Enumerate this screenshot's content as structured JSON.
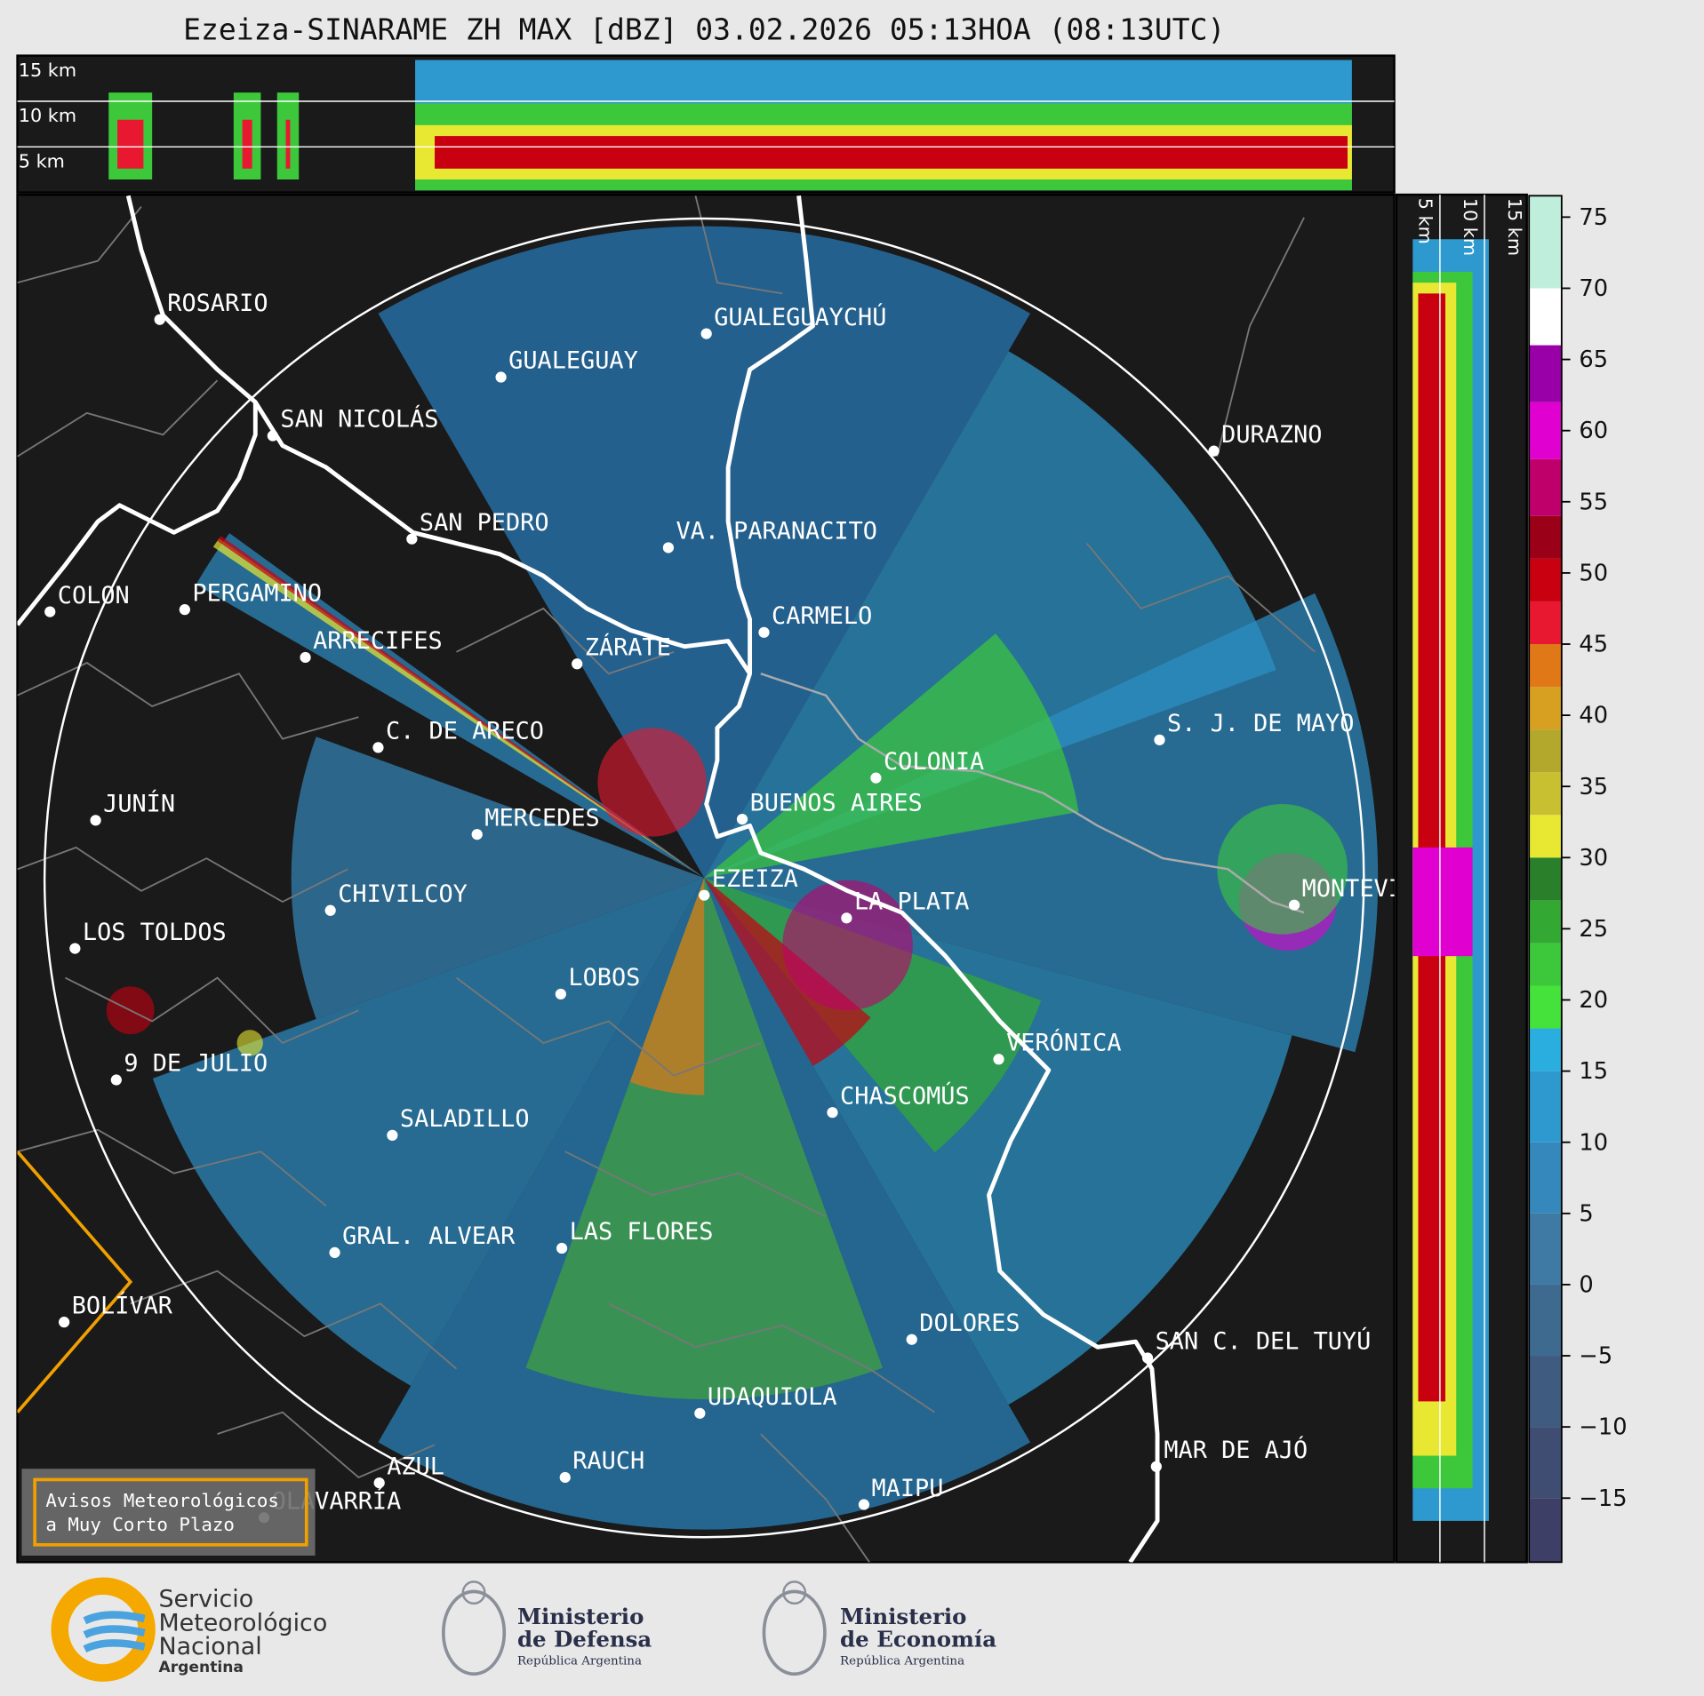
{
  "title": "Ezeiza-SINARAME ZH MAX [dBZ] 03.02.2026 05:13HOA (08:13UTC)",
  "cross_sections": {
    "top_labels": [
      "15 km",
      "10 km",
      "5 km"
    ],
    "side_labels": [
      "5 km",
      "10 km",
      "15 km"
    ]
  },
  "cities": [
    "ROSARIO",
    "GUALEGUAYCHÚ",
    "GUALEGUAY",
    "SAN NICOLÁS",
    "DURAZNO",
    "SAN PEDRO",
    "VA. PARANACITO",
    "COLON",
    "PERGAMINO",
    "CARMELO",
    "ARRECIFES",
    "ZÁRATE",
    "S. J. DE MAYO",
    "C. DE ARECO",
    "COLONIA",
    "BUENOS AIRES",
    "JUNÍN",
    "MERCEDES",
    "EZEIZA",
    "CHIVILCOY",
    "MONTEVIDEO",
    "LA PLATA",
    "LOS TOLDOS",
    "LOBOS",
    "VERÓNICA",
    "9 DE JULIO",
    "CHASCOMÚS",
    "SALADILLO",
    "GRAL. ALVEAR",
    "LAS FLORES",
    "BOLÍVAR",
    "DOLORES",
    "SAN C. DEL TUYÚ",
    "UDAQUIOLA",
    "MAR DE AJÓ",
    "AZUL",
    "RAUCH",
    "OLAVARRÍA",
    "MAIPU"
  ],
  "colorbar": {
    "range": [
      -19.5,
      76.5
    ],
    "ticks": [
      75,
      70,
      65,
      60,
      55,
      50,
      45,
      40,
      35,
      30,
      25,
      20,
      15,
      10,
      5,
      0,
      {
        "value": -5,
        "label": "−5"
      },
      {
        "value": -10,
        "label": "−10"
      },
      {
        "value": -15,
        "label": "−15"
      }
    ],
    "bins": [
      -19.5,
      -15,
      -10,
      -5,
      0,
      5,
      10,
      15,
      18,
      21,
      24,
      27,
      30,
      33,
      36,
      39,
      42,
      45,
      48,
      51,
      54,
      58,
      62,
      66,
      70,
      76.5
    ],
    "colors": [
      "#3d3f66",
      "#3f4d72",
      "#3f5b80",
      "#3f6a90",
      "#3f7aa4",
      "#3488bb",
      "#2e99cf",
      "#2aaee0",
      "#44e23a",
      "#3cc83a",
      "#33a833",
      "#2a7f2a",
      "#e8e832",
      "#c8c030",
      "#b4a82c",
      "#d8a020",
      "#e07818",
      "#e81830",
      "#c80010",
      "#9a0018",
      "#c0006a",
      "#e000d0",
      "#9a00a8",
      "#ffffff",
      "#bfeedd",
      "#8fdcc0",
      "#6fcfb0"
    ]
  },
  "warning_box": [
    "Avisos Meteorológicos",
    "a Muy Corto Plazo"
  ],
  "footer": {
    "smn": [
      "Servicio",
      "Meteorológico",
      "Nacional"
    ],
    "smn_country": "Argentina",
    "defensa": [
      "Ministerio",
      "de Defensa"
    ],
    "defensa_sub": "República Argentina",
    "economia": [
      "Ministerio",
      "de Economía"
    ],
    "economia_sub": "República Argentina"
  }
}
